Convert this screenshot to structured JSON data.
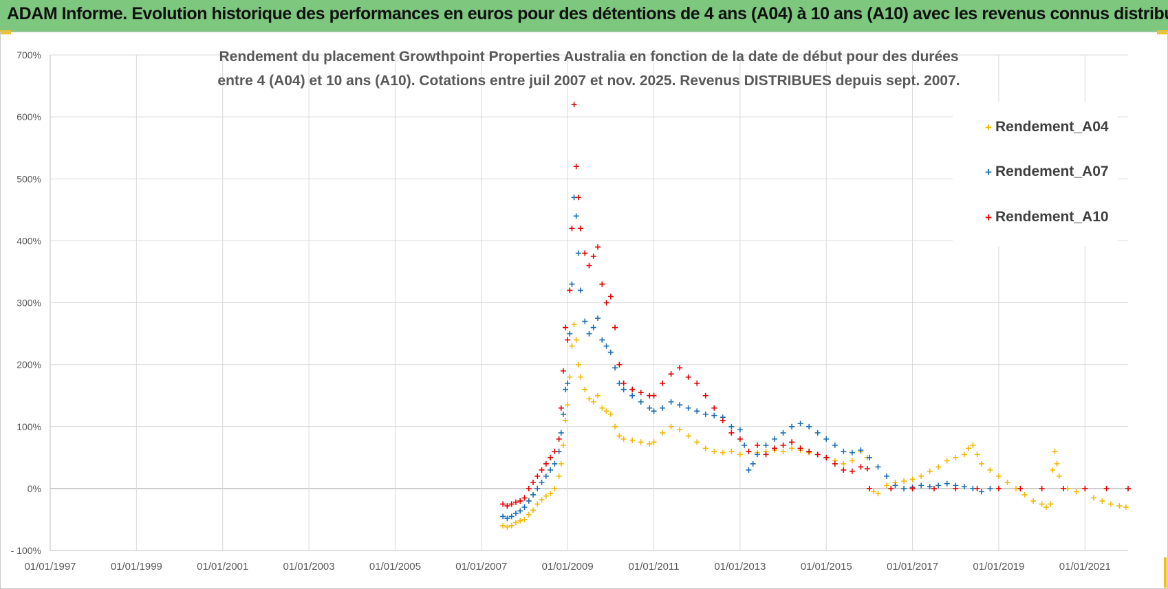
{
  "banner": {
    "title": "ADAM Informe. Evolution historique des performances en euros pour des détentions de 4 ans (A04) à 10 ans (A10) avec les revenus connus distribués"
  },
  "chart_data": {
    "type": "scatter",
    "title_lines": [
      "Rendement du placement Growthpoint Properties Australia en fonction de la date de début pour des durées",
      "entre 4 (A04) et 10 ans (A10). Cotations entre juil 2007 et nov. 2025. Revenus DISTRIBUES depuis sept. 2007."
    ],
    "xlabel": "",
    "ylabel": "",
    "x_range": [
      1997.0,
      2022.0
    ],
    "y_range": [
      -100,
      700
    ],
    "y_ticks": [
      {
        "value": 700,
        "label": "700%"
      },
      {
        "value": 600,
        "label": "600%"
      },
      {
        "value": 500,
        "label": "500%"
      },
      {
        "value": 400,
        "label": "400%"
      },
      {
        "value": 300,
        "label": "300%"
      },
      {
        "value": 200,
        "label": "200%"
      },
      {
        "value": 100,
        "label": "100%"
      },
      {
        "value": 0,
        "label": "0%"
      },
      {
        "value": -100,
        "label": "- 100%"
      }
    ],
    "x_ticks": [
      {
        "value": 1997,
        "label": "01/01/1997"
      },
      {
        "value": 1999,
        "label": "01/01/1999"
      },
      {
        "value": 2001,
        "label": "01/01/2001"
      },
      {
        "value": 2003,
        "label": "01/01/2003"
      },
      {
        "value": 2005,
        "label": "01/01/2005"
      },
      {
        "value": 2007,
        "label": "01/01/2007"
      },
      {
        "value": 2009,
        "label": "01/01/2009"
      },
      {
        "value": 2011,
        "label": "01/01/2011"
      },
      {
        "value": 2013,
        "label": "01/01/2013"
      },
      {
        "value": 2015,
        "label": "01/01/2015"
      },
      {
        "value": 2017,
        "label": "01/01/2017"
      },
      {
        "value": 2019,
        "label": "01/01/2019"
      },
      {
        "value": 2021,
        "label": "01/01/2021"
      }
    ],
    "grid": true,
    "legend_position": "top-right",
    "marker": "+",
    "series": [
      {
        "name": "Rendement_A04",
        "color": "#f5b800",
        "points": [
          [
            2007.5,
            -60
          ],
          [
            2007.6,
            -62
          ],
          [
            2007.7,
            -60
          ],
          [
            2007.8,
            -55
          ],
          [
            2007.9,
            -52
          ],
          [
            2008.0,
            -50
          ],
          [
            2008.1,
            -42
          ],
          [
            2008.2,
            -35
          ],
          [
            2008.3,
            -25
          ],
          [
            2008.4,
            -18
          ],
          [
            2008.5,
            -12
          ],
          [
            2008.6,
            -8
          ],
          [
            2008.7,
            0
          ],
          [
            2008.8,
            20
          ],
          [
            2008.85,
            40
          ],
          [
            2008.9,
            70
          ],
          [
            2008.95,
            110
          ],
          [
            2009.0,
            135
          ],
          [
            2009.05,
            180
          ],
          [
            2009.1,
            230
          ],
          [
            2009.15,
            265
          ],
          [
            2009.2,
            240
          ],
          [
            2009.25,
            200
          ],
          [
            2009.3,
            180
          ],
          [
            2009.4,
            160
          ],
          [
            2009.5,
            145
          ],
          [
            2009.6,
            140
          ],
          [
            2009.7,
            150
          ],
          [
            2009.8,
            130
          ],
          [
            2009.9,
            125
          ],
          [
            2010.0,
            120
          ],
          [
            2010.1,
            100
          ],
          [
            2010.2,
            85
          ],
          [
            2010.3,
            80
          ],
          [
            2010.5,
            78
          ],
          [
            2010.7,
            75
          ],
          [
            2010.9,
            72
          ],
          [
            2011.0,
            75
          ],
          [
            2011.2,
            90
          ],
          [
            2011.4,
            100
          ],
          [
            2011.6,
            95
          ],
          [
            2011.8,
            85
          ],
          [
            2012.0,
            75
          ],
          [
            2012.2,
            65
          ],
          [
            2012.4,
            60
          ],
          [
            2012.6,
            58
          ],
          [
            2012.8,
            60
          ],
          [
            2013.0,
            55
          ],
          [
            2013.2,
            60
          ],
          [
            2013.4,
            58
          ],
          [
            2013.6,
            60
          ],
          [
            2013.8,
            62
          ],
          [
            2014.0,
            60
          ],
          [
            2014.2,
            65
          ],
          [
            2014.4,
            62
          ],
          [
            2014.6,
            58
          ],
          [
            2014.8,
            55
          ],
          [
            2015.0,
            50
          ],
          [
            2015.2,
            45
          ],
          [
            2015.4,
            40
          ],
          [
            2015.6,
            45
          ],
          [
            2015.8,
            60
          ],
          [
            2015.95,
            50
          ],
          [
            2016.0,
            0
          ],
          [
            2016.1,
            -5
          ],
          [
            2016.2,
            -8
          ],
          [
            2016.4,
            5
          ],
          [
            2016.6,
            10
          ],
          [
            2016.8,
            12
          ],
          [
            2017.0,
            15
          ],
          [
            2017.2,
            20
          ],
          [
            2017.4,
            28
          ],
          [
            2017.6,
            35
          ],
          [
            2017.8,
            45
          ],
          [
            2018.0,
            50
          ],
          [
            2018.2,
            55
          ],
          [
            2018.3,
            65
          ],
          [
            2018.4,
            70
          ],
          [
            2018.5,
            55
          ],
          [
            2018.6,
            40
          ],
          [
            2018.8,
            30
          ],
          [
            2019.0,
            20
          ],
          [
            2019.2,
            10
          ],
          [
            2019.4,
            0
          ],
          [
            2019.6,
            -10
          ],
          [
            2019.8,
            -20
          ],
          [
            2020.0,
            -25
          ],
          [
            2020.1,
            -30
          ],
          [
            2020.2,
            -25
          ],
          [
            2020.25,
            30
          ],
          [
            2020.3,
            60
          ],
          [
            2020.35,
            40
          ],
          [
            2020.4,
            20
          ],
          [
            2020.6,
            0
          ],
          [
            2020.8,
            -5
          ],
          [
            2021.0,
            0
          ],
          [
            2021.2,
            -15
          ],
          [
            2021.4,
            -20
          ],
          [
            2021.6,
            -25
          ],
          [
            2021.8,
            -28
          ],
          [
            2021.95,
            -30
          ]
        ]
      },
      {
        "name": "Rendement_A07",
        "color": "#1a6fb4",
        "points": [
          [
            2007.5,
            -45
          ],
          [
            2007.6,
            -48
          ],
          [
            2007.7,
            -45
          ],
          [
            2007.8,
            -40
          ],
          [
            2007.9,
            -36
          ],
          [
            2008.0,
            -30
          ],
          [
            2008.1,
            -20
          ],
          [
            2008.2,
            -10
          ],
          [
            2008.3,
            0
          ],
          [
            2008.4,
            10
          ],
          [
            2008.5,
            20
          ],
          [
            2008.6,
            30
          ],
          [
            2008.7,
            40
          ],
          [
            2008.8,
            60
          ],
          [
            2008.85,
            90
          ],
          [
            2008.9,
            120
          ],
          [
            2008.95,
            160
          ],
          [
            2009.0,
            170
          ],
          [
            2009.05,
            250
          ],
          [
            2009.1,
            330
          ],
          [
            2009.15,
            470
          ],
          [
            2009.2,
            440
          ],
          [
            2009.25,
            380
          ],
          [
            2009.3,
            320
          ],
          [
            2009.4,
            270
          ],
          [
            2009.5,
            250
          ],
          [
            2009.6,
            260
          ],
          [
            2009.7,
            275
          ],
          [
            2009.8,
            240
          ],
          [
            2009.9,
            230
          ],
          [
            2010.0,
            220
          ],
          [
            2010.1,
            195
          ],
          [
            2010.2,
            170
          ],
          [
            2010.3,
            160
          ],
          [
            2010.5,
            150
          ],
          [
            2010.7,
            140
          ],
          [
            2010.9,
            130
          ],
          [
            2011.0,
            125
          ],
          [
            2011.2,
            130
          ],
          [
            2011.4,
            140
          ],
          [
            2011.6,
            135
          ],
          [
            2011.8,
            130
          ],
          [
            2012.0,
            125
          ],
          [
            2012.2,
            120
          ],
          [
            2012.4,
            118
          ],
          [
            2012.6,
            115
          ],
          [
            2012.8,
            100
          ],
          [
            2013.0,
            95
          ],
          [
            2013.1,
            70
          ],
          [
            2013.2,
            30
          ],
          [
            2013.3,
            40
          ],
          [
            2013.4,
            55
          ],
          [
            2013.6,
            70
          ],
          [
            2013.8,
            80
          ],
          [
            2014.0,
            90
          ],
          [
            2014.2,
            100
          ],
          [
            2014.4,
            105
          ],
          [
            2014.6,
            100
          ],
          [
            2014.8,
            90
          ],
          [
            2015.0,
            80
          ],
          [
            2015.2,
            70
          ],
          [
            2015.4,
            60
          ],
          [
            2015.6,
            58
          ],
          [
            2015.8,
            62
          ],
          [
            2016.0,
            50
          ],
          [
            2016.2,
            35
          ],
          [
            2016.4,
            20
          ],
          [
            2016.6,
            5
          ],
          [
            2016.8,
            0
          ],
          [
            2017.0,
            2
          ],
          [
            2017.2,
            5
          ],
          [
            2017.4,
            3
          ],
          [
            2017.6,
            5
          ],
          [
            2017.8,
            8
          ],
          [
            2018.0,
            5
          ],
          [
            2018.2,
            3
          ],
          [
            2018.4,
            0
          ],
          [
            2018.6,
            -5
          ],
          [
            2018.8,
            0
          ]
        ]
      },
      {
        "name": "Rendement_A10",
        "color": "#e60000",
        "points": [
          [
            2007.5,
            -25
          ],
          [
            2007.6,
            -28
          ],
          [
            2007.7,
            -25
          ],
          [
            2007.8,
            -22
          ],
          [
            2007.9,
            -20
          ],
          [
            2008.0,
            -15
          ],
          [
            2008.1,
            0
          ],
          [
            2008.2,
            10
          ],
          [
            2008.3,
            20
          ],
          [
            2008.4,
            30
          ],
          [
            2008.5,
            40
          ],
          [
            2008.6,
            50
          ],
          [
            2008.7,
            60
          ],
          [
            2008.8,
            80
          ],
          [
            2008.85,
            130
          ],
          [
            2008.9,
            190
          ],
          [
            2008.95,
            260
          ],
          [
            2009.0,
            240
          ],
          [
            2009.05,
            320
          ],
          [
            2009.1,
            420
          ],
          [
            2009.15,
            620
          ],
          [
            2009.2,
            520
          ],
          [
            2009.25,
            470
          ],
          [
            2009.3,
            420
          ],
          [
            2009.4,
            380
          ],
          [
            2009.5,
            360
          ],
          [
            2009.6,
            375
          ],
          [
            2009.7,
            390
          ],
          [
            2009.8,
            330
          ],
          [
            2009.9,
            300
          ],
          [
            2010.0,
            310
          ],
          [
            2010.1,
            260
          ],
          [
            2010.2,
            200
          ],
          [
            2010.3,
            170
          ],
          [
            2010.5,
            160
          ],
          [
            2010.7,
            155
          ],
          [
            2010.9,
            150
          ],
          [
            2011.0,
            150
          ],
          [
            2011.2,
            170
          ],
          [
            2011.4,
            185
          ],
          [
            2011.6,
            195
          ],
          [
            2011.8,
            180
          ],
          [
            2012.0,
            170
          ],
          [
            2012.2,
            150
          ],
          [
            2012.4,
            130
          ],
          [
            2012.6,
            110
          ],
          [
            2012.8,
            90
          ],
          [
            2013.0,
            80
          ],
          [
            2013.2,
            60
          ],
          [
            2013.4,
            70
          ],
          [
            2013.6,
            55
          ],
          [
            2013.8,
            65
          ],
          [
            2014.0,
            70
          ],
          [
            2014.2,
            75
          ],
          [
            2014.4,
            65
          ],
          [
            2014.6,
            60
          ],
          [
            2014.8,
            55
          ],
          [
            2015.0,
            50
          ],
          [
            2015.2,
            40
          ],
          [
            2015.4,
            30
          ],
          [
            2015.6,
            28
          ],
          [
            2015.8,
            35
          ],
          [
            2015.95,
            32
          ],
          [
            2016.0,
            0
          ],
          [
            2016.5,
            0
          ],
          [
            2017.0,
            0
          ],
          [
            2017.5,
            0
          ],
          [
            2018.0,
            0
          ],
          [
            2018.5,
            0
          ],
          [
            2019.0,
            0
          ],
          [
            2019.5,
            0
          ],
          [
            2020.0,
            0
          ],
          [
            2020.5,
            0
          ],
          [
            2021.0,
            0
          ],
          [
            2021.5,
            0
          ],
          [
            2022.0,
            0
          ]
        ]
      }
    ]
  }
}
